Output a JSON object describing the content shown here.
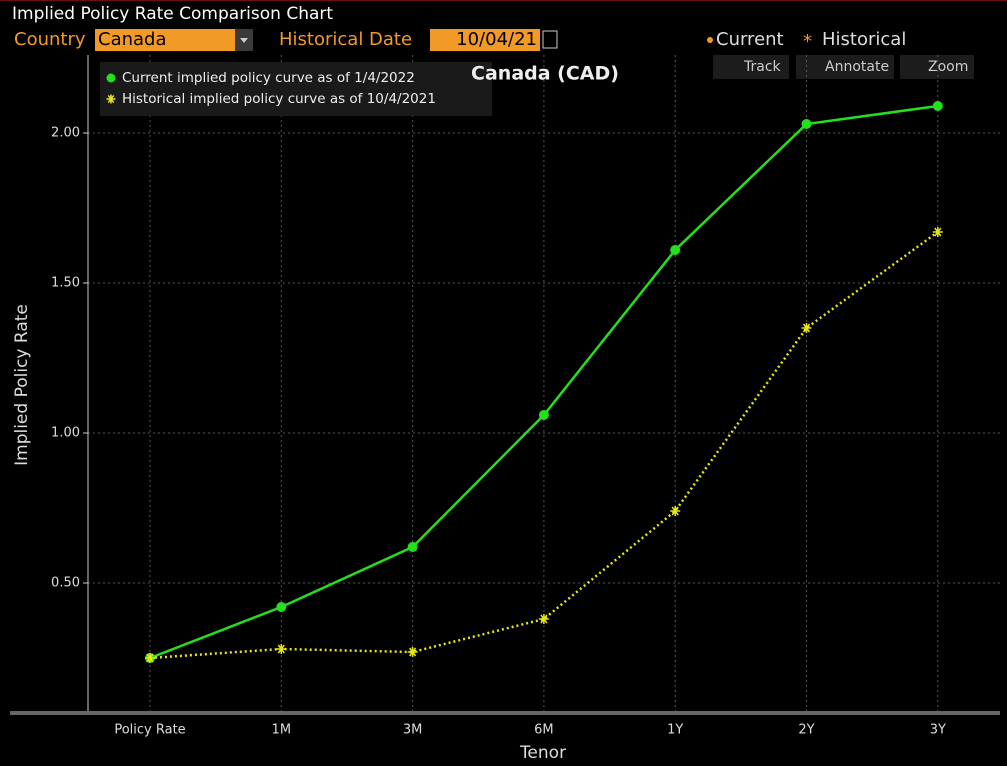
{
  "window": {
    "title": "Implied Policy Rate Comparison Chart",
    "country_label": "Country",
    "country_value": "Canada",
    "date_label": "Historical Date",
    "date_value": "10/04/21",
    "toggles": [
      "Current",
      "Historical"
    ],
    "tools": [
      "Track",
      "Annotate",
      "Zoom"
    ]
  },
  "chart_data": {
    "type": "line",
    "title": "Canada (CAD)",
    "x_label": "Tenor",
    "y_label": "Implied Policy Rate",
    "categories": [
      "Policy Rate",
      "1M",
      "3M",
      "6M",
      "1Y",
      "2Y",
      "3Y"
    ],
    "series": [
      {
        "name": "Current implied policy curve as of 1/4/2022",
        "color": "#22e01c",
        "marker": "circle",
        "dash": "solid",
        "values": [
          0.25,
          0.42,
          0.62,
          1.06,
          1.61,
          2.03,
          2.09
        ]
      },
      {
        "name": "Historical implied policy curve as of 10/4/2021",
        "color": "#e6e619",
        "marker": "star",
        "dash": "dotted",
        "values": [
          0.25,
          0.28,
          0.27,
          0.38,
          0.74,
          1.35,
          1.67
        ]
      }
    ],
    "ylim": [
      0.06,
      2.26
    ],
    "yticks": [
      {
        "value": 0.5,
        "label": "0.50"
      },
      {
        "value": 1,
        "label": "1.00"
      },
      {
        "value": 1.5,
        "label": "1.50"
      },
      {
        "value": 2,
        "label": "2.00"
      }
    ],
    "grid": true,
    "legend": "top-left"
  }
}
